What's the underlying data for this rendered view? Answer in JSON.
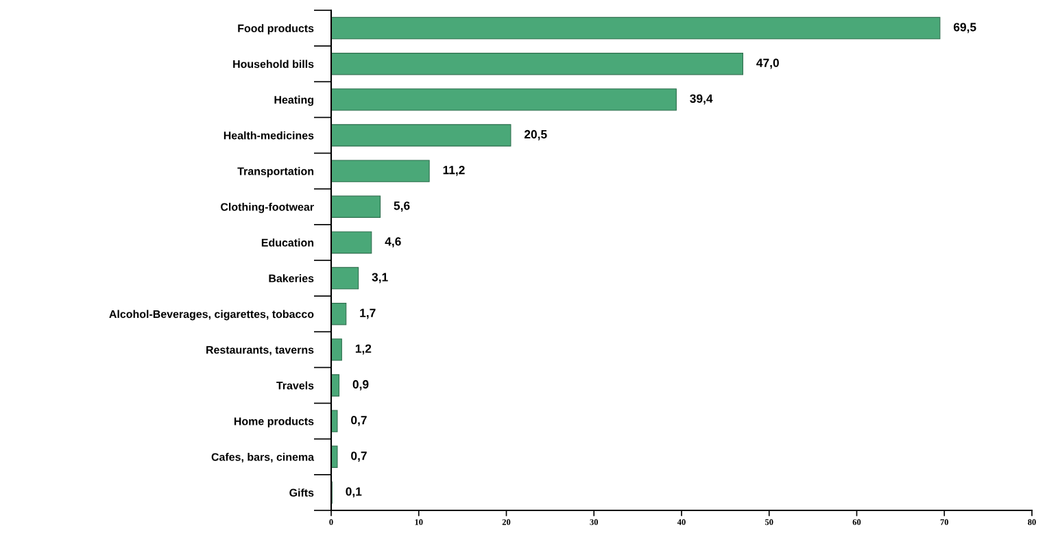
{
  "chart_data": {
    "type": "bar",
    "orientation": "horizontal",
    "categories": [
      "Food products",
      "Household bills",
      "Heating",
      "Health-medicines",
      "Transportation",
      "Clothing-footwear",
      "Education",
      "Bakeries",
      "Alcohol-Beverages, cigarettes, tobacco",
      "Restaurants, taverns",
      "Travels",
      "Home products",
      "Cafes, bars, cinema",
      "Gifts"
    ],
    "values": [
      69.5,
      47.0,
      39.4,
      20.5,
      11.2,
      5.6,
      4.6,
      3.1,
      1.7,
      1.2,
      0.9,
      0.7,
      0.7,
      0.1
    ],
    "value_labels": [
      "69,5",
      "47,0",
      "39,4",
      "20,5",
      "11,2",
      "5,6",
      "4,6",
      "3,1",
      "1,7",
      "1,2",
      "0,9",
      "0,7",
      "0,7",
      "0,1"
    ],
    "color": "#4aa878",
    "xlim": [
      0,
      80
    ],
    "xticks": [
      0,
      10,
      20,
      30,
      40,
      50,
      60,
      70,
      80
    ],
    "grid": false,
    "legend": false
  }
}
